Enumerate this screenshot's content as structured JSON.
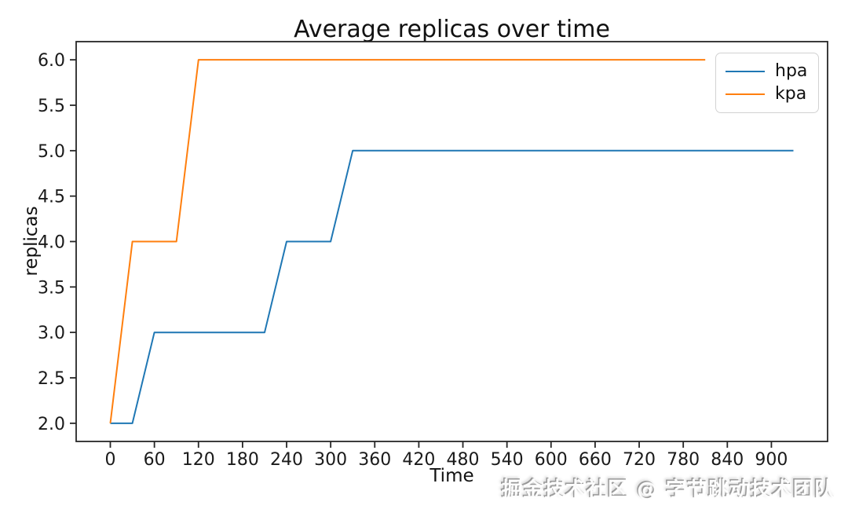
{
  "chart_data": {
    "type": "line",
    "title": "Average replicas over time",
    "xlabel": "Time",
    "ylabel": "replicas",
    "grid": false,
    "legend_position": "upper right",
    "xlim": [
      -46.5,
      976.5
    ],
    "ylim": [
      1.8,
      6.2
    ],
    "xticks": {
      "values": [
        0,
        60,
        120,
        180,
        240,
        300,
        360,
        420,
        480,
        540,
        600,
        660,
        720,
        780,
        840,
        900
      ],
      "labels": [
        "0",
        "60",
        "120",
        "180",
        "240",
        "300",
        "360",
        "420",
        "480",
        "540",
        "600",
        "660",
        "720",
        "780",
        "840",
        "900"
      ]
    },
    "yticks": {
      "values": [
        2.0,
        2.5,
        3.0,
        3.5,
        4.0,
        4.5,
        5.0,
        5.5,
        6.0
      ],
      "labels": [
        "2.0",
        "2.5",
        "3.0",
        "3.5",
        "4.0",
        "4.5",
        "5.0",
        "5.5",
        "6.0"
      ]
    },
    "series": [
      {
        "name": "hpa",
        "color": "#1f77b4",
        "x": [
          0,
          30,
          60,
          90,
          120,
          150,
          180,
          210,
          240,
          270,
          300,
          330,
          360,
          390,
          420,
          450,
          480,
          510,
          540,
          570,
          600,
          630,
          660,
          690,
          720,
          750,
          780,
          810,
          840,
          870,
          900,
          930
        ],
        "y": [
          2,
          2,
          3,
          3,
          3,
          3,
          3,
          3,
          4,
          4,
          4,
          5,
          5,
          5,
          5,
          5,
          5,
          5,
          5,
          5,
          5,
          5,
          5,
          5,
          5,
          5,
          5,
          5,
          5,
          5,
          5,
          5
        ]
      },
      {
        "name": "kpa",
        "color": "#ff7f0e",
        "x": [
          0,
          30,
          60,
          90,
          120,
          150,
          180,
          210,
          240,
          270,
          300,
          330,
          360,
          390,
          420,
          450,
          480,
          510,
          540,
          570,
          600,
          630,
          660,
          690,
          720,
          750,
          780,
          810
        ],
        "y": [
          2,
          4,
          4,
          4,
          6,
          6,
          6,
          6,
          6,
          6,
          6,
          6,
          6,
          6,
          6,
          6,
          6,
          6,
          6,
          6,
          6,
          6,
          6,
          6,
          6,
          6,
          6,
          6
        ]
      }
    ]
  },
  "watermark": {
    "text": "掘金技术社区 @ 字节跳动技术团队"
  }
}
